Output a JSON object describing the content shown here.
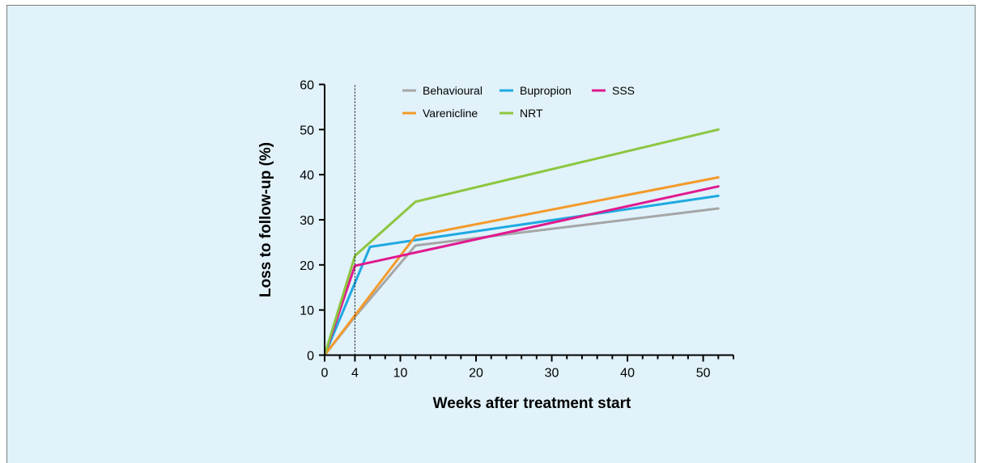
{
  "chart_data": {
    "type": "line",
    "title": "",
    "xlabel": "Weeks after treatment start",
    "ylabel": "Loss to follow-up (%)",
    "xlim": [
      0,
      54
    ],
    "ylim": [
      0,
      60
    ],
    "x_ticks": [
      0,
      4,
      10,
      20,
      30,
      40,
      50
    ],
    "x_minor_ticks": [
      2,
      6,
      8,
      12,
      14,
      16,
      18,
      22,
      24,
      26,
      28,
      32,
      34,
      36,
      38,
      42,
      44,
      46,
      48,
      52,
      54
    ],
    "y_ticks": [
      0,
      10,
      20,
      30,
      40,
      50,
      60
    ],
    "reference_line_x": 4,
    "grid": false,
    "legend_position": "top-right",
    "series": [
      {
        "name": "Behavioural",
        "color": "#a6a6a6",
        "x": [
          0,
          4,
          12,
          52
        ],
        "y": [
          0,
          8.5,
          24.3,
          32.5
        ]
      },
      {
        "name": "Bupropion",
        "color": "#1fa9e1",
        "x": [
          0,
          6,
          12,
          52
        ],
        "y": [
          0,
          24,
          25.5,
          35.3
        ]
      },
      {
        "name": "SSS",
        "color": "#e0198f",
        "x": [
          0,
          4,
          52
        ],
        "y": [
          0,
          19.8,
          37.4
        ]
      },
      {
        "name": "Varenicline",
        "color": "#f39a2b",
        "x": [
          0,
          4,
          12,
          52
        ],
        "y": [
          0,
          8.8,
          26.4,
          39.4
        ]
      },
      {
        "name": "NRT",
        "color": "#8cc63f",
        "x": [
          0,
          4,
          12,
          52
        ],
        "y": [
          0,
          22,
          34,
          50
        ]
      }
    ]
  }
}
